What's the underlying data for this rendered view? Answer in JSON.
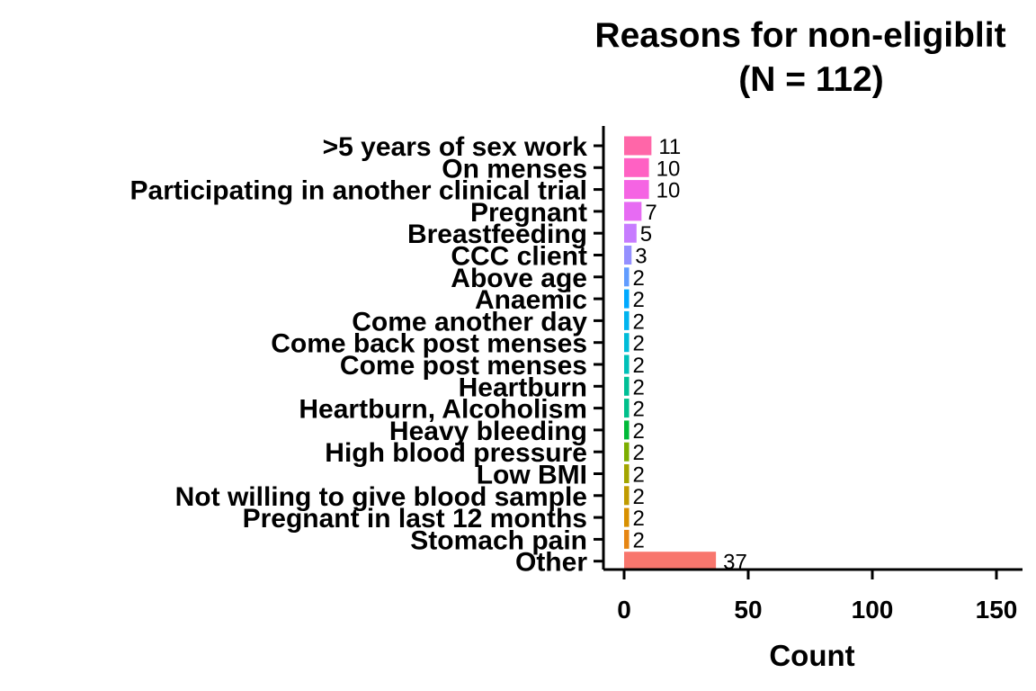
{
  "chart_data": {
    "type": "bar",
    "orientation": "horizontal",
    "title": "Reasons for non-eligiblit",
    "subtitle": "(N = 112)",
    "xlabel": "Count",
    "ylabel": "",
    "xlim": [
      0,
      150
    ],
    "xticks": [
      "0",
      "50",
      "100",
      "150"
    ],
    "grid": false,
    "legend": "none",
    "categories": [
      ">5 years of sex work",
      "On menses",
      "Participating in another clinical trial",
      "Pregnant",
      "Breastfeeding",
      "CCC client",
      "Above age",
      "Anaemic",
      "Come another day",
      "Come back post menses",
      "Come post menses",
      "Heartburn",
      "Heartburn, Alcoholism",
      "Heavy bleeding",
      "High blood pressure",
      "Low BMI",
      "Not willing to give blood sample",
      "Pregnant in last 12 months",
      "Stomach pain",
      "Other"
    ],
    "values": [
      11,
      10,
      10,
      7,
      5,
      3,
      2,
      2,
      2,
      2,
      2,
      2,
      2,
      2,
      2,
      2,
      2,
      2,
      2,
      37
    ],
    "colors": [
      "#FF66A8",
      "#FF61C3",
      "#F564E3",
      "#E76BF3",
      "#C77CFF",
      "#9590FF",
      "#619CFF",
      "#00A9FF",
      "#00B4EF",
      "#00BCD8",
      "#00C0B8",
      "#00BF96",
      "#00C08B",
      "#00BA38",
      "#7CAE00",
      "#A3A500",
      "#C09B00",
      "#D89000",
      "#E68613",
      "#F8766D"
    ]
  }
}
